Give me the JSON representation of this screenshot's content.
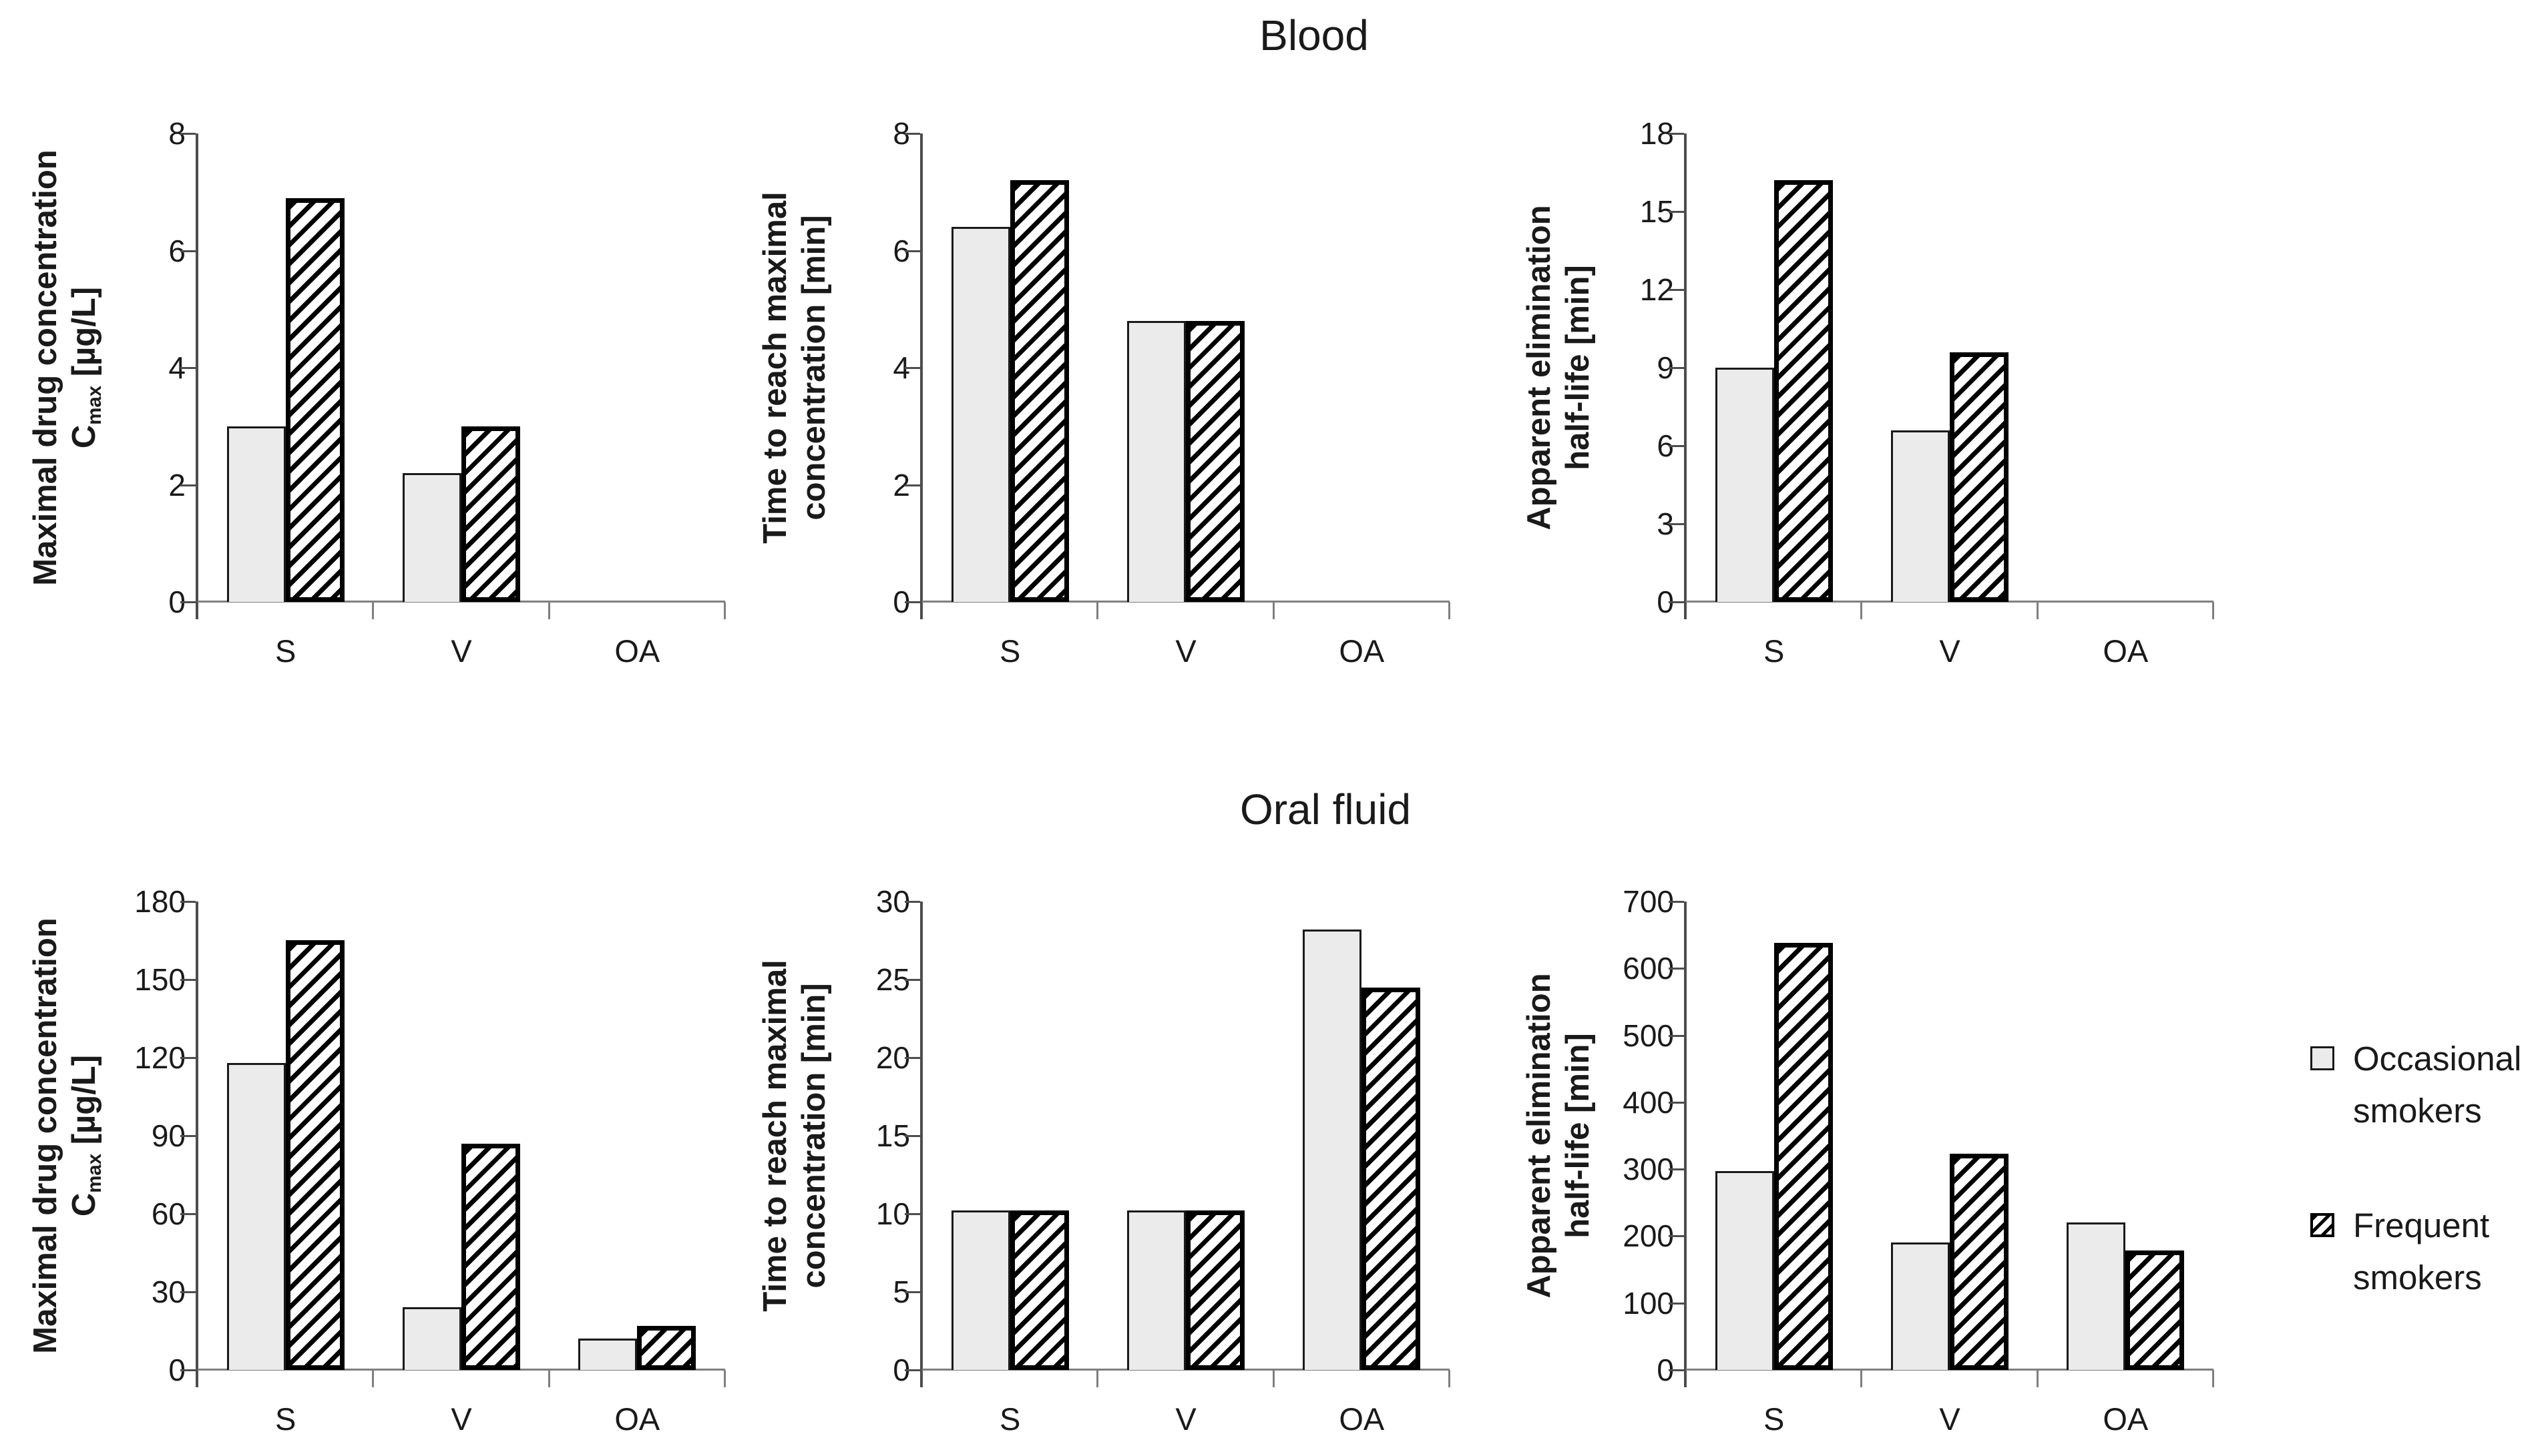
{
  "page": {
    "panel_titles": {
      "blood": "Blood",
      "oral_fluid": "Oral fluid"
    }
  },
  "legend": {
    "items": [
      {
        "id": "occasional",
        "swatch": "plain-light-square",
        "lines": [
          "Occasional",
          "smokers"
        ]
      },
      {
        "id": "frequent",
        "swatch": "diagonal-hatched-square",
        "lines": [
          "Frequent",
          "smokers"
        ]
      }
    ]
  },
  "colors": {
    "occasional_fill": "#ebebeb",
    "bar_border_thin": "#1a1a1a",
    "bar_border_thick": "#000000",
    "hatch": "#000000",
    "axis_line": "#4d4d4d",
    "baseline": "#7f7f7f",
    "text": "#1a1a1a"
  },
  "chart_data": [
    {
      "type": "bar",
      "panel": "Blood",
      "id": "blood-cmax",
      "ylabel_lines": [
        [
          {
            "t": "Maximal drug concentration"
          }
        ],
        [
          {
            "t": "C"
          },
          {
            "t": "max",
            "sub": true
          },
          {
            "t": " [µg/L]"
          }
        ]
      ],
      "ylim": [
        0,
        8
      ],
      "yticks": [
        0,
        2,
        4,
        6,
        8
      ],
      "categories": [
        "S",
        "V",
        "OA"
      ],
      "series": [
        {
          "name": "Occasional smokers",
          "values": [
            3.0,
            2.2,
            null
          ]
        },
        {
          "name": "Frequent smokers",
          "values": [
            6.9,
            3.0,
            null
          ]
        }
      ],
      "grid": false,
      "legend_position": "shared-right"
    },
    {
      "type": "bar",
      "panel": "Blood",
      "id": "blood-tmax",
      "ylabel_lines": [
        [
          {
            "t": "Time to reach maximal"
          }
        ],
        [
          {
            "t": "concentration [min]"
          }
        ]
      ],
      "ylim": [
        0,
        8
      ],
      "yticks": [
        0,
        2,
        4,
        6,
        8
      ],
      "categories": [
        "S",
        "V",
        "OA"
      ],
      "series": [
        {
          "name": "Occasional smokers",
          "values": [
            6.4,
            4.8,
            null
          ]
        },
        {
          "name": "Frequent smokers",
          "values": [
            7.2,
            4.8,
            null
          ]
        }
      ],
      "grid": false,
      "legend_position": "shared-right"
    },
    {
      "type": "bar",
      "panel": "Blood",
      "id": "blood-halflife",
      "ylabel_lines": [
        [
          {
            "t": "Apparent elimination"
          }
        ],
        [
          {
            "t": "half-life [min]"
          }
        ]
      ],
      "ylim": [
        0,
        18
      ],
      "yticks": [
        0,
        3,
        6,
        9,
        12,
        15,
        18
      ],
      "categories": [
        "S",
        "V",
        "OA"
      ],
      "series": [
        {
          "name": "Occasional smokers",
          "values": [
            9.0,
            6.6,
            null
          ]
        },
        {
          "name": "Frequent smokers",
          "values": [
            16.2,
            9.6,
            null
          ]
        }
      ],
      "grid": false,
      "legend_position": "shared-right"
    },
    {
      "type": "bar",
      "panel": "Oral fluid",
      "id": "oral-cmax",
      "ylabel_lines": [
        [
          {
            "t": "Maximal drug concentration"
          }
        ],
        [
          {
            "t": "C"
          },
          {
            "t": "max",
            "sub": true
          },
          {
            "t": " [µg/L]"
          }
        ]
      ],
      "ylim": [
        0,
        180
      ],
      "yticks": [
        0,
        30,
        60,
        90,
        120,
        150,
        180
      ],
      "categories": [
        "S",
        "V",
        "OA"
      ],
      "series": [
        {
          "name": "Occasional smokers",
          "values": [
            118,
            24,
            12
          ]
        },
        {
          "name": "Frequent smokers",
          "values": [
            165,
            87,
            17
          ]
        }
      ],
      "grid": false,
      "legend_position": "shared-right"
    },
    {
      "type": "bar",
      "panel": "Oral fluid",
      "id": "oral-tmax",
      "ylabel_lines": [
        [
          {
            "t": "Time to reach maximal"
          }
        ],
        [
          {
            "t": "concentration [min]"
          }
        ]
      ],
      "ylim": [
        0,
        30
      ],
      "yticks": [
        0,
        5,
        10,
        15,
        20,
        25,
        30
      ],
      "categories": [
        "S",
        "V",
        "OA"
      ],
      "series": [
        {
          "name": "Occasional smokers",
          "values": [
            10.2,
            10.2,
            28.2
          ]
        },
        {
          "name": "Frequent smokers",
          "values": [
            10.2,
            10.2,
            24.5
          ]
        }
      ],
      "grid": false,
      "legend_position": "shared-right"
    },
    {
      "type": "bar",
      "panel": "Oral fluid",
      "id": "oral-halflife",
      "ylabel_lines": [
        [
          {
            "t": "Apparent elimination"
          }
        ],
        [
          {
            "t": "half-life [min]"
          }
        ]
      ],
      "ylim": [
        0,
        700
      ],
      "yticks": [
        0,
        100,
        200,
        300,
        400,
        500,
        600,
        700
      ],
      "categories": [
        "S",
        "V",
        "OA"
      ],
      "series": [
        {
          "name": "Occasional smokers",
          "values": [
            297,
            190,
            220
          ]
        },
        {
          "name": "Frequent smokers",
          "values": [
            638,
            323,
            178
          ]
        }
      ],
      "grid": false,
      "legend_position": "shared-right"
    }
  ]
}
